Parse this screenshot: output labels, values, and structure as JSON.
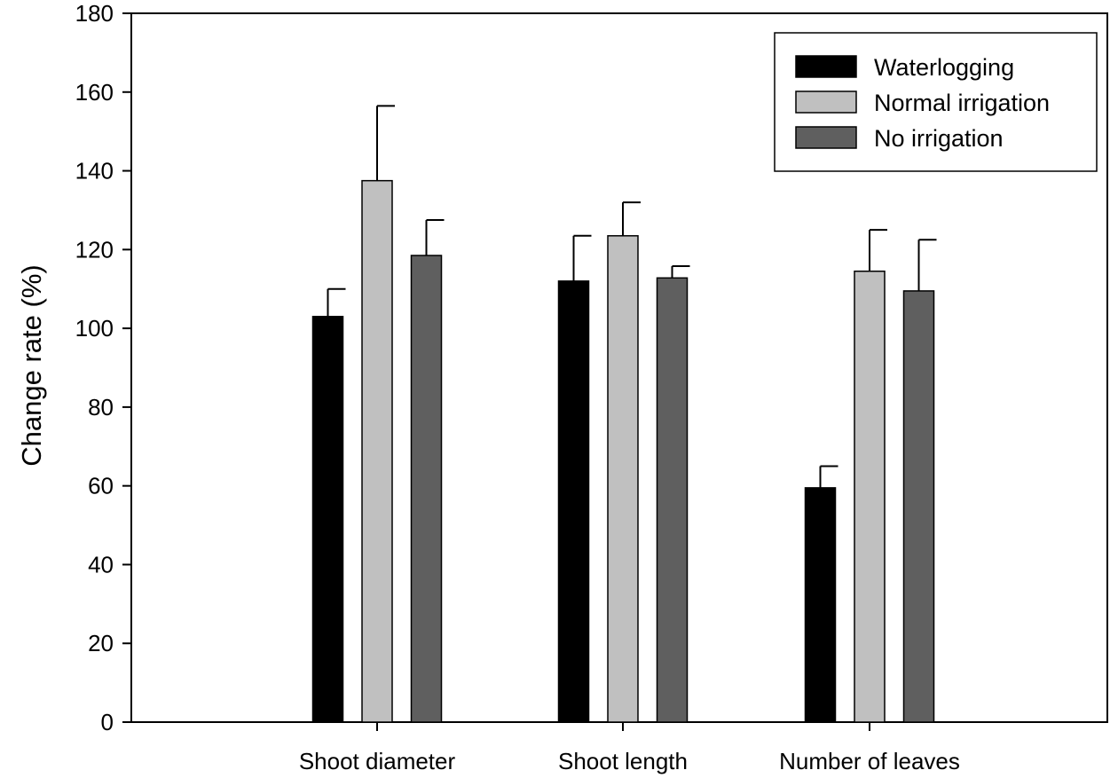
{
  "chart_data": {
    "type": "bar",
    "title": "",
    "xlabel": "",
    "ylabel": "Change rate (%)",
    "ylim": [
      0,
      180
    ],
    "yticks": [
      0,
      20,
      40,
      60,
      80,
      100,
      120,
      140,
      160,
      180
    ],
    "categories": [
      "Shoot diameter",
      "Shoot length",
      "Number of leaves"
    ],
    "series": [
      {
        "name": "Waterlogging",
        "color": "#000000",
        "values": [
          103,
          112,
          59.5
        ],
        "errors": [
          7,
          11.5,
          5.5
        ]
      },
      {
        "name": "Normal irrigation",
        "color": "#c0c0c0",
        "values": [
          137.5,
          123.5,
          114.5
        ],
        "errors": [
          19,
          8.5,
          10.5
        ]
      },
      {
        "name": "No irrigation",
        "color": "#5f5f5f",
        "values": [
          118.5,
          112.8,
          109.5
        ],
        "errors": [
          9,
          3,
          13
        ]
      }
    ],
    "legend_position": "top-right",
    "grid": false
  }
}
